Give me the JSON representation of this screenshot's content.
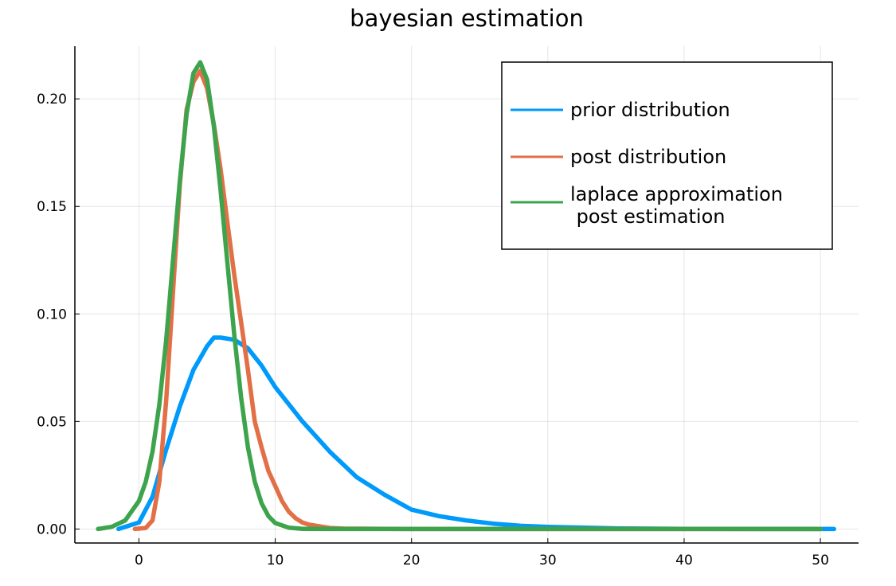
{
  "chart_data": {
    "type": "line",
    "title": "bayesian estimation",
    "xlabel": "",
    "ylabel": "",
    "xlim": [
      -4.7,
      52.8
    ],
    "ylim": [
      -0.0065,
      0.2245
    ],
    "xticks": [
      0,
      10,
      20,
      30,
      40,
      50
    ],
    "xtick_labels": [
      "0",
      "10",
      "20",
      "30",
      "40",
      "50"
    ],
    "yticks": [
      0.0,
      0.05,
      0.1,
      0.15,
      0.2
    ],
    "ytick_labels": [
      "0.00",
      "0.05",
      "0.10",
      "0.15",
      "0.20"
    ],
    "grid": true,
    "legend_position": "top-right",
    "series": [
      {
        "name": "prior distribution",
        "color": "#009AFA",
        "x": [
          -1.5,
          0,
          1,
          2,
          3,
          4,
          5,
          5.5,
          6,
          7,
          8,
          9,
          10,
          11,
          12,
          14,
          16,
          18,
          20,
          22,
          24,
          26,
          28,
          30,
          35,
          40,
          45,
          51
        ],
        "y": [
          0.0,
          0.003,
          0.015,
          0.037,
          0.057,
          0.074,
          0.085,
          0.089,
          0.089,
          0.088,
          0.084,
          0.076,
          0.066,
          0.058,
          0.05,
          0.036,
          0.024,
          0.016,
          0.009,
          0.006,
          0.004,
          0.0025,
          0.0015,
          0.001,
          0.0003,
          0.0001,
          0.0,
          0.0
        ]
      },
      {
        "name": "post distribution",
        "color": "#E26F46",
        "x": [
          -0.3,
          0.5,
          1.0,
          1.5,
          2,
          2.5,
          3,
          3.5,
          4,
          4.5,
          5,
          5.5,
          6,
          6.5,
          7,
          7.5,
          8,
          8.5,
          9,
          9.5,
          10,
          10.5,
          11,
          11.5,
          12,
          12.5,
          13,
          14,
          15,
          20,
          30,
          50
        ],
        "y": [
          0.0,
          0.0005,
          0.004,
          0.022,
          0.06,
          0.11,
          0.16,
          0.195,
          0.208,
          0.213,
          0.205,
          0.188,
          0.167,
          0.142,
          0.118,
          0.096,
          0.074,
          0.05,
          0.038,
          0.027,
          0.02,
          0.013,
          0.008,
          0.005,
          0.003,
          0.002,
          0.0015,
          0.0005,
          0.0002,
          0.0,
          0.0,
          0.0
        ]
      },
      {
        "name": "laplace approximation\n post estimation",
        "color": "#3DA44D",
        "x": [
          -3,
          -2,
          -1,
          0,
          0.5,
          1,
          1.5,
          2,
          2.5,
          3,
          3.5,
          4,
          4.5,
          5,
          5.5,
          6,
          6.5,
          7,
          7.5,
          8,
          8.5,
          9,
          9.5,
          10,
          11,
          12,
          14,
          20,
          30,
          50
        ],
        "y": [
          0.0,
          0.001,
          0.004,
          0.013,
          0.022,
          0.036,
          0.058,
          0.088,
          0.125,
          0.162,
          0.193,
          0.212,
          0.217,
          0.209,
          0.187,
          0.157,
          0.123,
          0.09,
          0.061,
          0.038,
          0.022,
          0.012,
          0.006,
          0.0028,
          0.0006,
          0.0001,
          0.0,
          0.0,
          0.0,
          0.0
        ]
      }
    ]
  }
}
